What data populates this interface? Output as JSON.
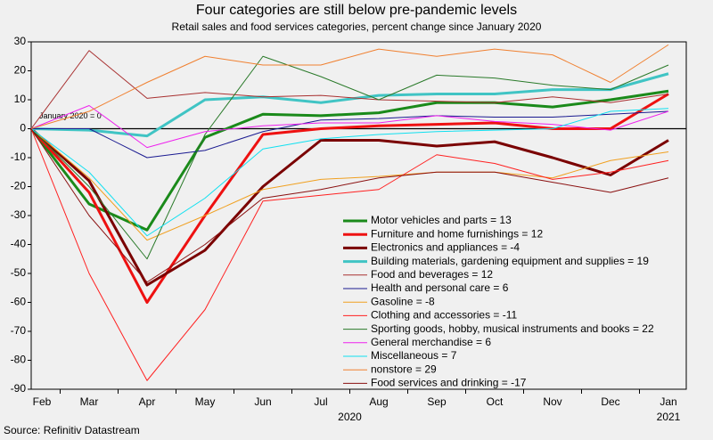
{
  "chart_data": {
    "type": "line",
    "title": "Four categories are still below pre-pandemic levels",
    "subtitle": "Retail sales and food services categories, percent change since January 2020",
    "source": "Source: Refinitiv Datastream",
    "annotation": "January 2020 = 0",
    "categories": [
      "Feb",
      "Mar",
      "Apr",
      "May",
      "Jun",
      "Jul",
      "Aug",
      "Sep",
      "Oct",
      "Nov",
      "Dec",
      "Jan"
    ],
    "years": [
      "2020",
      "2021"
    ],
    "ylim": [
      -90,
      30
    ],
    "yticks": [
      -90,
      -80,
      -70,
      -60,
      -50,
      -40,
      -30,
      -20,
      -10,
      0,
      10,
      20,
      30
    ],
    "series": [
      {
        "name": "Motor vehicles and parts = 13",
        "color": "#1a8a1a",
        "width": 3,
        "values": [
          0,
          -26,
          -35,
          -3,
          5,
          4.5,
          5.5,
          9,
          9,
          7.5,
          10,
          13
        ]
      },
      {
        "name": "Furniture and home furnishings = 12",
        "color": "#ee1111",
        "width": 3,
        "values": [
          0,
          -22,
          -60,
          -30,
          -2,
          0,
          1,
          1.5,
          2,
          0,
          0,
          12
        ]
      },
      {
        "name": "Electronics and appliances = -4",
        "color": "#7a0000",
        "width": 3,
        "values": [
          0,
          -18,
          -54,
          -42,
          -20,
          -4,
          -4,
          -6,
          -4.5,
          -10,
          -16,
          -4
        ]
      },
      {
        "name": "Building materials, gardening equipment and supplies = 19",
        "color": "#40c4c4",
        "width": 3,
        "values": [
          0,
          -0.5,
          -2.5,
          10,
          11,
          9,
          11.5,
          12,
          12,
          13.5,
          13.5,
          19
        ]
      },
      {
        "name": "Food and beverages = 12",
        "color": "#a83030",
        "width": 1,
        "values": [
          0,
          27,
          10.5,
          12.5,
          11,
          11.5,
          10,
          9.5,
          9,
          11,
          9,
          12
        ]
      },
      {
        "name": "Health and personal care = 6",
        "color": "#1a1a90",
        "width": 1,
        "values": [
          0,
          0,
          -10,
          -7.5,
          -1,
          3,
          3.5,
          4.5,
          4,
          4,
          5,
          6
        ]
      },
      {
        "name": "Gasoline = -8",
        "color": "#f0a020",
        "width": 1,
        "values": [
          0,
          -17,
          -38.5,
          -30,
          -21,
          -17.5,
          -16.5,
          -15,
          -15,
          -17,
          -11,
          -8
        ]
      },
      {
        "name": "Clothing and accessories = -11",
        "color": "#ff2020",
        "width": 1,
        "values": [
          0,
          -50,
          -87,
          -62.5,
          -25,
          -23,
          -21,
          -9,
          -12,
          -17.5,
          -15,
          -11
        ]
      },
      {
        "name": "Sporting goods, hobby, musical instruments and books = 22",
        "color": "#2a7a2a",
        "width": 1,
        "values": [
          0,
          -20,
          -45,
          -2,
          25,
          18,
          10,
          18.5,
          17.5,
          15,
          13.5,
          22
        ]
      },
      {
        "name": "General merchandise = 6",
        "color": "#ee20ee",
        "width": 1,
        "values": [
          0,
          8,
          -6.5,
          -1,
          1,
          2,
          2,
          4.5,
          2.5,
          1.5,
          -0.5,
          6
        ]
      },
      {
        "name": "Miscellaneous = 7",
        "color": "#10e0f0",
        "width": 1,
        "values": [
          0,
          -15,
          -37,
          -24,
          -7,
          -3.5,
          -2,
          -1,
          -0.5,
          0,
          6,
          7
        ]
      },
      {
        "name": "nonstore = 29",
        "color": "#f08030",
        "width": 1,
        "values": [
          0,
          6,
          16,
          25,
          22,
          22,
          27.5,
          25,
          27.5,
          25.5,
          16,
          29
        ]
      },
      {
        "name": "Food services and drinking = -17",
        "color": "#8a1010",
        "width": 1,
        "values": [
          0,
          -30,
          -53,
          -40,
          -24,
          -21,
          -17,
          -15,
          -15,
          -18.5,
          -22,
          -17
        ]
      }
    ]
  }
}
